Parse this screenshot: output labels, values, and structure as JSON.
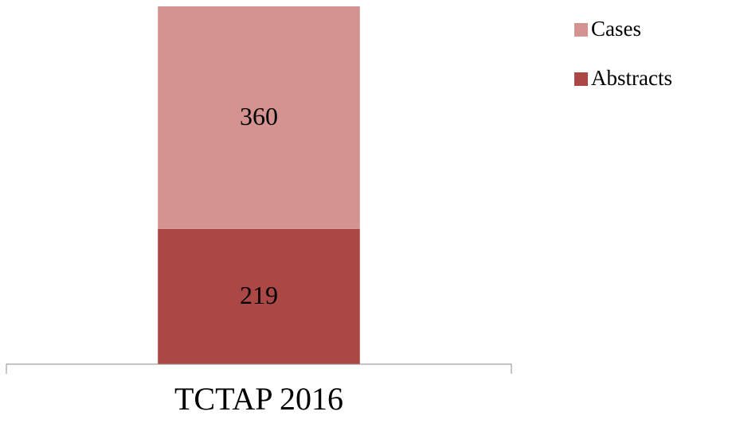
{
  "chart_data": {
    "type": "stacked_bar",
    "categories": [
      "TCTAP 2016"
    ],
    "series": [
      {
        "name": "Abstracts",
        "color": "#ab4744",
        "values": [
          219
        ]
      },
      {
        "name": "Cases",
        "color": "#d49391",
        "values": [
          360
        ]
      }
    ],
    "legend": "right"
  }
}
